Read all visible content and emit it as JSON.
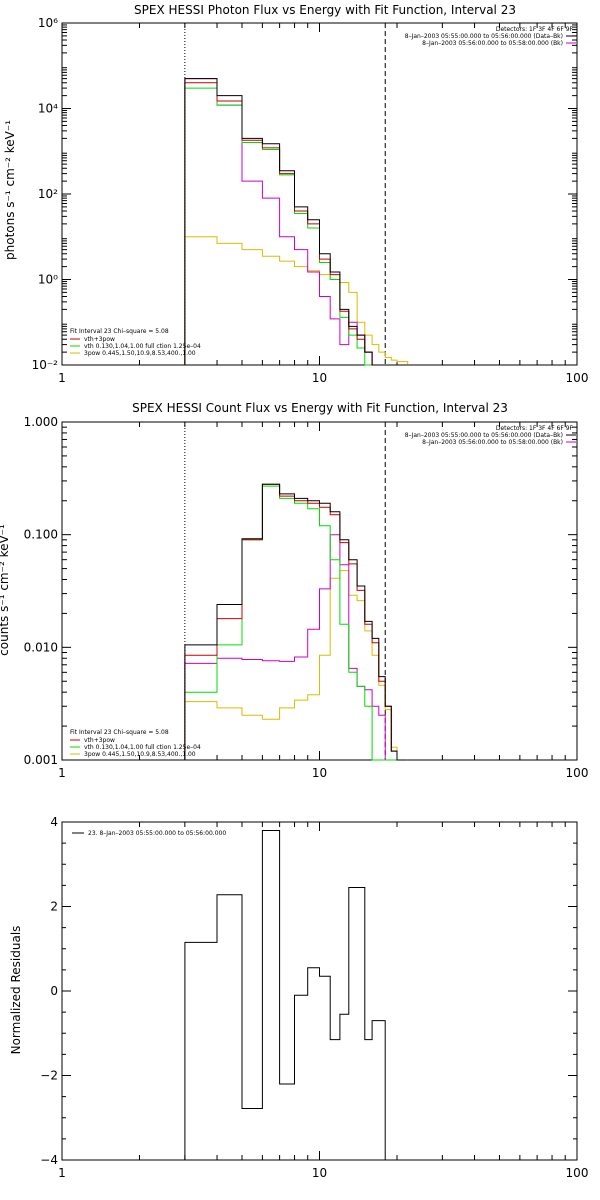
{
  "colors": {
    "total": "#000000",
    "sum": "#cc0000",
    "vth": "#00dd00",
    "3pow": "#ddbb00",
    "bk": "#cc00cc"
  },
  "chart_data": [
    {
      "type": "line",
      "title": "SPEX HESSI Photon Flux vs Energy with Fit Function, Interval 23",
      "xlabel": "",
      "ylabel": "photons s⁻¹ cm⁻² keV⁻¹",
      "xscale": "log",
      "yscale": "log",
      "xlim": [
        1,
        100
      ],
      "ylim": [
        0.01,
        1000000
      ],
      "xticks": [
        {
          "v": 1,
          "label": "1"
        },
        {
          "v": 10,
          "label": "10"
        },
        {
          "v": 100,
          "label": "100"
        }
      ],
      "yticks": [
        {
          "v": 0.01,
          "label": "10⁻²"
        },
        {
          "v": 1,
          "label": "10⁰"
        },
        {
          "v": 100,
          "label": "10²"
        },
        {
          "v": 10000,
          "label": "10⁴"
        },
        {
          "v": 1000000,
          "label": "10⁶"
        }
      ],
      "vlines": [
        {
          "x": 3,
          "style": "dotted"
        },
        {
          "x": 18,
          "style": "dashed"
        }
      ],
      "edges": [
        3,
        4,
        5,
        6,
        7,
        8,
        9,
        10,
        11,
        12,
        13,
        14,
        15,
        16,
        17,
        18,
        19,
        20,
        22
      ],
      "series": [
        {
          "key": "total",
          "values": [
            50000,
            20000,
            2000,
            1500,
            350,
            50,
            25,
            4,
            1.5,
            0.2,
            0.08,
            0.05,
            0.02,
            0.01,
            0.01,
            0.01,
            0.01,
            0.01
          ]
        },
        {
          "key": "sum",
          "values": [
            40000,
            15000,
            1800,
            1200,
            300,
            40,
            20,
            3,
            1.3,
            0.18,
            0.07,
            0.04,
            0.02,
            0.01,
            0.01,
            0.01,
            0.01,
            0.01
          ]
        },
        {
          "key": "vth",
          "values": [
            30000,
            12000,
            1600,
            1100,
            280,
            35,
            16,
            2.5,
            1.0,
            0.13,
            0.05,
            0.025,
            0.01,
            0.01,
            0.01,
            0.01,
            0.01,
            0.01
          ]
        },
        {
          "key": "3pow",
          "values": [
            10,
            7,
            5,
            3.5,
            2.7,
            2.0,
            1.6,
            1.3,
            1.0,
            0.85,
            0.5,
            0.1,
            0.05,
            0.03,
            0.02,
            0.015,
            0.013,
            0.012
          ]
        },
        {
          "key": "bk",
          "values": [
            50000,
            12000,
            200,
            80,
            10,
            5,
            1.5,
            0.4,
            0.12,
            0.03,
            0.1,
            0.05,
            0.02,
            0.01,
            0.01,
            0.01,
            0.01,
            0.01
          ]
        }
      ],
      "annotation": {
        "line1": "Detectors: 1F 3F 4F 6F 9F",
        "line2": "8–Jan–2003 05:55:00.000 to 05:56:00.000 (Data–Bk)",
        "line3": "8–Jan–2003 05:56:00.000 to 05:58:00.000 (Bk)"
      },
      "fitlegend": {
        "header": "Fit Interval 23   Chi–square = 5.08",
        "items": [
          {
            "key": "sum",
            "label": "vth+3pow"
          },
          {
            "key": "vth",
            "label": "vth 0.130,1.04,1.00  full ction 1.25e–04"
          },
          {
            "key": "3pow",
            "label": "3pow 0.445,1.50,10.9,8.53,400.,1.00"
          }
        ]
      }
    },
    {
      "type": "line",
      "title": "SPEX HESSI Count Flux vs Energy with Fit Function, Interval 23",
      "xlabel": "",
      "ylabel": "counts s⁻¹ cm⁻² keV⁻¹",
      "xscale": "log",
      "yscale": "log",
      "xlim": [
        1,
        100
      ],
      "ylim": [
        0.001,
        1.0
      ],
      "xticks": [
        {
          "v": 1,
          "label": "1"
        },
        {
          "v": 10,
          "label": "10"
        },
        {
          "v": 100,
          "label": "100"
        }
      ],
      "yticks": [
        {
          "v": 0.001,
          "label": "0.001"
        },
        {
          "v": 0.01,
          "label": "0.010"
        },
        {
          "v": 0.1,
          "label": "0.100"
        },
        {
          "v": 1.0,
          "label": "1.000"
        }
      ],
      "vlines": [
        {
          "x": 3,
          "style": "dotted"
        },
        {
          "x": 18,
          "style": "dashed"
        }
      ],
      "edges": [
        3,
        4,
        5,
        6,
        7,
        8,
        9,
        10,
        11,
        12,
        13,
        14,
        15,
        16,
        17,
        18,
        19,
        20,
        22
      ],
      "series": [
        {
          "key": "total",
          "values": [
            0.0105,
            0.024,
            0.092,
            0.28,
            0.23,
            0.21,
            0.2,
            0.19,
            0.16,
            0.09,
            0.06,
            0.035,
            0.017,
            0.012,
            0.0055,
            0.003,
            0.0012,
            0.001
          ]
        },
        {
          "key": "sum",
          "values": [
            0.0085,
            0.018,
            0.09,
            0.28,
            0.22,
            0.2,
            0.19,
            0.175,
            0.15,
            0.085,
            0.055,
            0.032,
            0.016,
            0.011,
            0.005,
            0.003,
            0.0012,
            0.001
          ]
        },
        {
          "key": "vth",
          "values": [
            0.004,
            0.0105,
            0.09,
            0.27,
            0.21,
            0.19,
            0.17,
            0.12,
            0.06,
            0.016,
            0.006,
            0.0045,
            0.003,
            0.001,
            0.001,
            0.001,
            0.001,
            0.001
          ]
        },
        {
          "key": "3pow",
          "values": [
            0.0033,
            0.0029,
            0.0025,
            0.0023,
            0.0029,
            0.0034,
            0.0038,
            0.0085,
            0.041,
            0.048,
            0.029,
            0.026,
            0.014,
            0.0085,
            0.0046,
            0.0028,
            0.0013,
            0.001
          ]
        },
        {
          "key": "bk",
          "values": [
            0.0072,
            0.008,
            0.0078,
            0.0076,
            0.0075,
            0.0082,
            0.0145,
            0.033,
            0.1,
            0.054,
            0.0065,
            0.0045,
            0.0042,
            0.003,
            0.0025,
            0.001,
            0.001,
            0.001
          ]
        }
      ],
      "annotation": {
        "line1": "Detectors: 1F 3F 4F 6F 9F",
        "line2": "8–Jan–2003 05:55:00.000 to 05:56:00.000 (Data–Bk)",
        "line3": "8–Jan–2003 05:56:00.000 to 05:58:00.000 (Bk)"
      },
      "fitlegend": {
        "header": "Fit Interval 23   Chi–square = 5.08",
        "items": [
          {
            "key": "sum",
            "label": "vth+3pow"
          },
          {
            "key": "vth",
            "label": "vth 0.130,1.04,1.00  full ction 1.25e–04"
          },
          {
            "key": "3pow",
            "label": "3pow 0.445,1.50,10.9,8.53,400.,1.00"
          }
        ]
      }
    },
    {
      "type": "line",
      "title": "",
      "xlabel": "",
      "ylabel": "Normalized Residuals",
      "xscale": "log",
      "yscale": "linear",
      "xlim": [
        1,
        100
      ],
      "ylim": [
        -4,
        4
      ],
      "xticks": [
        {
          "v": 1,
          "label": "1"
        },
        {
          "v": 10,
          "label": "10"
        },
        {
          "v": 100,
          "label": "100"
        }
      ],
      "yticks": [
        {
          "v": -4,
          "label": "−4"
        },
        {
          "v": -2,
          "label": "−2"
        },
        {
          "v": 0,
          "label": "0"
        },
        {
          "v": 2,
          "label": "2"
        },
        {
          "v": 4,
          "label": "4"
        }
      ],
      "vlines": [],
      "edges": [
        3,
        4,
        5,
        6,
        7,
        8,
        9,
        10,
        11,
        12,
        13,
        14,
        15,
        16,
        17,
        18
      ],
      "series": [
        {
          "key": "total",
          "values": [
            1.15,
            2.28,
            -2.78,
            3.8,
            -2.2,
            -0.1,
            0.55,
            0.35,
            -1.15,
            -0.55,
            2.45,
            -1.15,
            -0.7
          ]
        }
      ],
      "residual_edges": [
        3,
        4,
        5,
        6,
        7,
        8,
        9,
        10,
        11,
        12,
        13,
        15,
        16,
        18
      ],
      "legend": "23.  8–Jan–2003 05:55:00.000 to 05:56:00.000"
    }
  ]
}
